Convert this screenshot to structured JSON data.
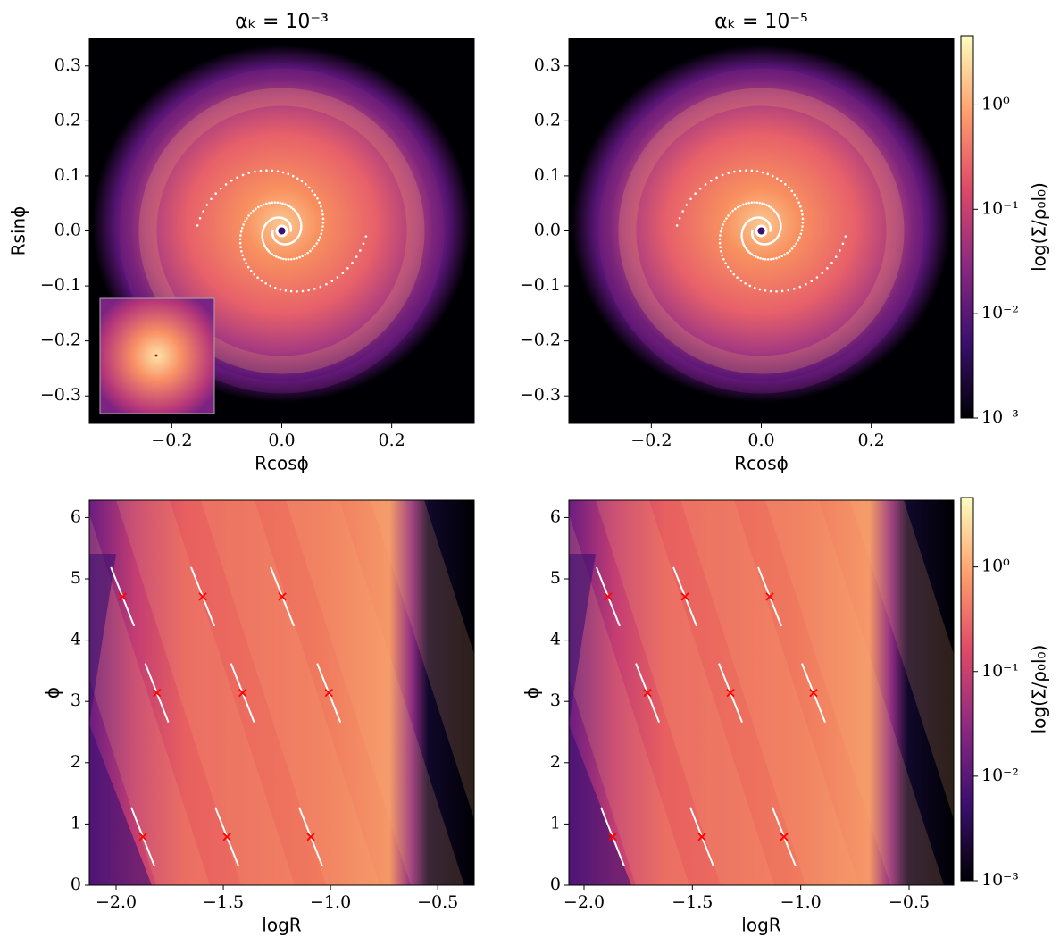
{
  "chart_data": [
    {
      "type": "heatmap",
      "title": "αₖ = 10⁻³",
      "xlabel": "Rcosϕ",
      "ylabel": "Rsinϕ",
      "xlim": [
        -0.35,
        0.35
      ],
      "ylim": [
        -0.35,
        0.35
      ],
      "xticks": [
        {
          "value": -0.2,
          "label": "−0.2"
        },
        {
          "value": 0,
          "label": "0.0"
        },
        0.2
      ],
      "yticks": [
        {
          "value": -0.3,
          "label": "−0.3"
        },
        {
          "value": -0.2,
          "label": "−0.2"
        },
        {
          "value": -0.1,
          "label": "−0.1"
        },
        {
          "value": 0,
          "label": "0.0"
        },
        0.1,
        0.2,
        0.3
      ]
    },
    {
      "type": "heatmap",
      "title": "αₖ = 10⁻⁵",
      "xlabel": "Rcosϕ",
      "xlim": [
        -0.35,
        0.35
      ],
      "ylim": [
        -0.35,
        0.35
      ],
      "xticks": [
        {
          "value": -0.2,
          "label": "−0.2"
        },
        {
          "value": 0,
          "label": "0.0"
        },
        0.2
      ],
      "yticks": [
        {
          "value": -0.3,
          "label": "−0.3"
        },
        {
          "value": -0.2,
          "label": "−0.2"
        },
        {
          "value": -0.1,
          "label": "−0.1"
        },
        {
          "value": 0,
          "label": "0.0"
        },
        0.1,
        0.2,
        0.3
      ],
      "colorbar": {
        "label": "log(Σ/ρ₀l₀)",
        "scale": "log",
        "lim": [
          0.001,
          4.6
        ],
        "ticks": [
          {
            "value": 0.001,
            "label": "10⁻³"
          },
          {
            "value": 0.01,
            "label": "10⁻²"
          },
          {
            "value": 0.1,
            "label": "10⁻¹"
          },
          {
            "value": 1,
            "label": "10⁰"
          }
        ],
        "colormap": [
          "#000004",
          "#3b0f70",
          "#8c2981",
          "#de4968",
          "#fe9f6d",
          "#fcfdbf"
        ]
      }
    },
    {
      "type": "heatmap",
      "xlabel": "logR",
      "ylabel": "ϕ",
      "xlim": [
        -2.125,
        -0.33
      ],
      "ylim": [
        0,
        6.283
      ],
      "xticks": [
        {
          "value": -2.0,
          "label": "−2.0"
        },
        {
          "value": -1.5,
          "label": "−1.5"
        },
        {
          "value": -1.0,
          "label": "−1.0"
        },
        {
          "value": -0.5,
          "label": "−0.5"
        }
      ],
      "yticks": [
        0,
        1,
        2,
        3,
        4,
        5,
        6
      ],
      "markers": {
        "color": "#ff0000",
        "x": [
          -1.97,
          -1.596,
          -1.225,
          -1.81,
          -1.41,
          -1.008,
          -1.875,
          -1.483,
          -1.092
        ],
        "y": [
          4.71,
          4.71,
          4.71,
          3.14,
          3.14,
          3.14,
          0.79,
          0.79,
          0.79
        ]
      }
    },
    {
      "type": "heatmap",
      "xlabel": "logR",
      "ylabel": "ϕ",
      "xlim": [
        -2.07,
        -0.294
      ],
      "ylim": [
        0,
        6.283
      ],
      "xticks": [
        {
          "value": -2.0,
          "label": "−2.0"
        },
        {
          "value": -1.5,
          "label": "−1.5"
        },
        {
          "value": -1.0,
          "label": "−1.0"
        },
        {
          "value": -0.5,
          "label": "−0.5"
        }
      ],
      "yticks": [
        0,
        1,
        2,
        3,
        4,
        5,
        6
      ],
      "markers": {
        "color": "#ff0000",
        "x": [
          -1.889,
          -1.534,
          -1.143,
          -1.707,
          -1.324,
          -0.941,
          -1.868,
          -1.456,
          -1.077
        ],
        "y": [
          4.71,
          4.71,
          4.71,
          3.14,
          3.14,
          3.14,
          0.79,
          0.79,
          0.79
        ]
      },
      "colorbar": {
        "label": "log(Σ/ρ₀l₀)",
        "scale": "log",
        "lim": [
          0.001,
          4.6
        ],
        "ticks": [
          {
            "value": 0.001,
            "label": "10⁻³"
          },
          {
            "value": 0.01,
            "label": "10⁻²"
          },
          {
            "value": 0.1,
            "label": "10⁻¹"
          },
          {
            "value": 1,
            "label": "10⁰"
          }
        ],
        "colormap": [
          "#000004",
          "#3b0f70",
          "#8c2981",
          "#de4968",
          "#fe9f6d",
          "#fcfdbf"
        ]
      }
    }
  ]
}
